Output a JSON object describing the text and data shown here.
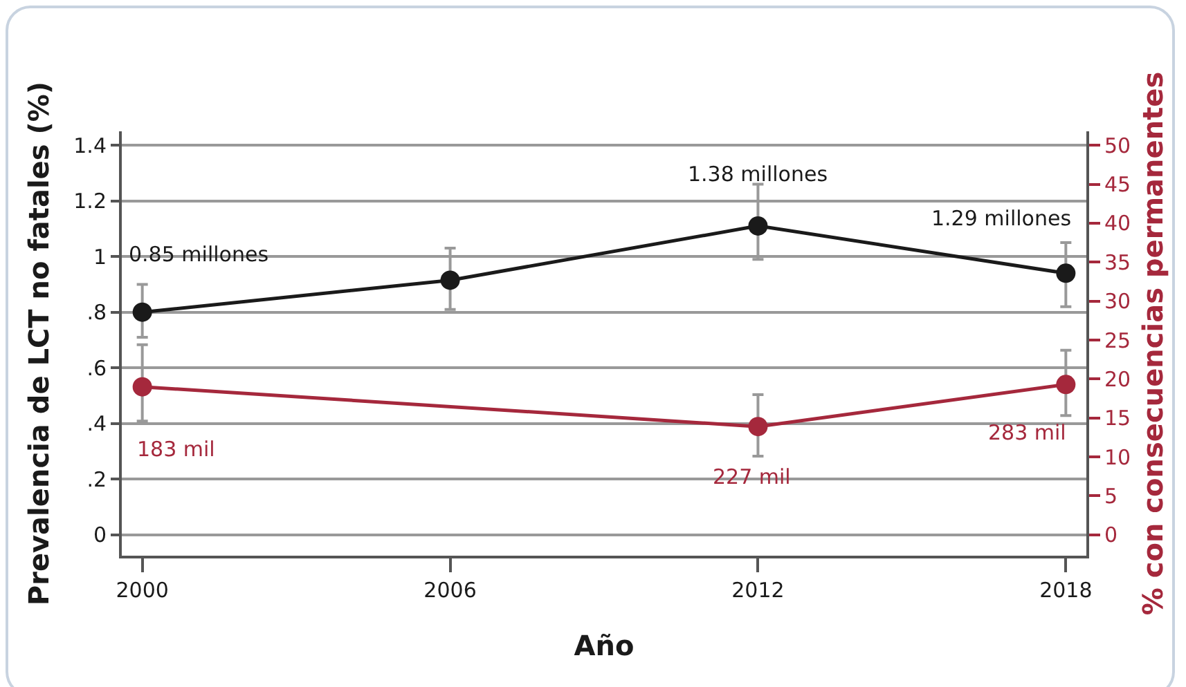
{
  "chart_data": {
    "type": "line",
    "xlabel": "Año",
    "ylabel": "Prevalencia de LCT no fatales (%)",
    "y2label": "% con consecuencias permanentes",
    "x": [
      2000,
      2006,
      2012,
      2018
    ],
    "series": [
      {
        "color": "#1a1a1a",
        "values": [
          0.8,
          0.915,
          1.11,
          0.94
        ],
        "errors": [
          [
            0.71,
            0.9
          ],
          [
            0.81,
            1.03
          ],
          [
            0.99,
            1.26
          ],
          [
            0.82,
            1.05
          ]
        ]
      },
      {
        "color": "#a5283c",
        "axis": "y2",
        "x": [
          2000,
          2012,
          2018
        ],
        "values": [
          19,
          13.9,
          19.3
        ],
        "errors": [
          [
            14.6,
            24.4
          ],
          [
            10.1,
            18
          ],
          [
            15.3,
            23.7
          ]
        ]
      }
    ],
    "xlim": [
      1999.6,
      2018.4
    ],
    "xticks": [
      2000,
      2006,
      2012,
      2018
    ],
    "ylim": [
      -0.075,
      1.45
    ],
    "yticks": [
      0,
      {
        "value": 0.2,
        "label": ".2"
      },
      {
        "value": 0.4,
        "label": ".4"
      },
      {
        "value": 0.6,
        "label": ".6"
      },
      {
        "value": 0.8,
        "label": ".8"
      },
      1,
      1.2,
      1.4
    ],
    "y2lim": [
      -2.68,
      51.8
    ],
    "y2ticks": [
      0,
      5,
      10,
      15,
      20,
      25,
      30,
      35,
      40,
      45,
      50
    ],
    "grid": "y",
    "marker": "circle",
    "line_style": "solid",
    "annotations": [
      {
        "text": "0.85 millones",
        "x": 2000,
        "y": 0.8
      },
      {
        "text": "1.38 millones",
        "x": 2012,
        "y": 1.11
      },
      {
        "text": "1.29 millones",
        "x": 2018,
        "y": 0.94
      },
      "183 mil",
      "227 mil",
      "283 mil"
    ]
  }
}
